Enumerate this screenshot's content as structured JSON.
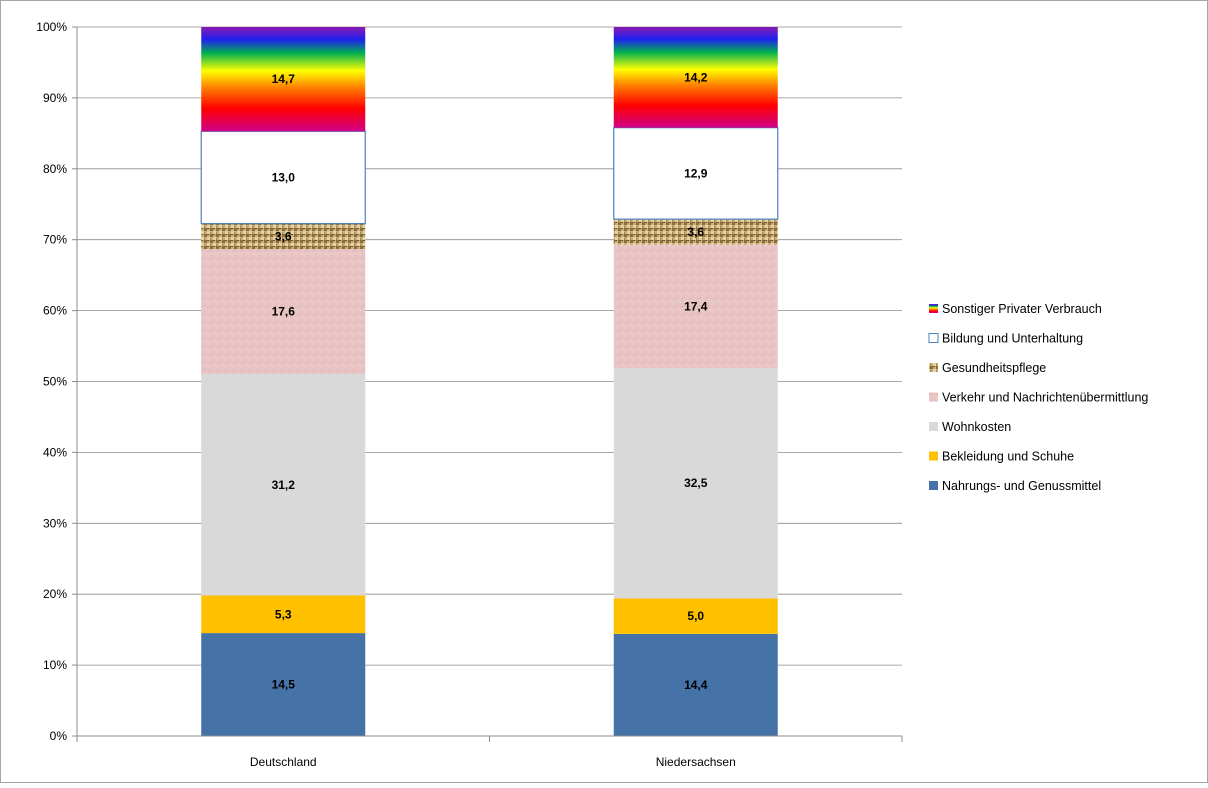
{
  "chart_data": {
    "type": "bar",
    "stacked": "percent",
    "categories": [
      "Deutschland",
      "Niedersachsen"
    ],
    "ylim": [
      0,
      100
    ],
    "yticks": [
      "0%",
      "10%",
      "20%",
      "30%",
      "40%",
      "50%",
      "60%",
      "70%",
      "80%",
      "90%",
      "100%"
    ],
    "grid": true,
    "legend_position": "right",
    "series": [
      {
        "name": "Nahrungs- und Genussmittel",
        "values": [
          14.5,
          14.4
        ],
        "labels": [
          "14,5",
          "14,4"
        ],
        "fill": "solid",
        "color": "#4572a7"
      },
      {
        "name": "Bekleidung und Schuhe",
        "values": [
          5.3,
          5.0
        ],
        "labels": [
          "5,3",
          "5,0"
        ],
        "fill": "solid",
        "color": "#ffc000"
      },
      {
        "name": "Wohnkosten",
        "values": [
          31.2,
          32.5
        ],
        "labels": [
          "31,2",
          "32,5"
        ],
        "fill": "solid",
        "color": "#d9d9d9"
      },
      {
        "name": "Verkehr und Nachrichtenübermittlung",
        "values": [
          17.6,
          17.4
        ],
        "labels": [
          "17,6",
          "17,4"
        ],
        "fill": "texture",
        "color": "#e8c4c4"
      },
      {
        "name": "Gesundheitspflege",
        "values": [
          3.6,
          3.6
        ],
        "labels": [
          "3,6",
          "3,6"
        ],
        "fill": "burlap",
        "color": "#c8a870"
      },
      {
        "name": "Bildung und Unterhaltung",
        "values": [
          13.0,
          12.9
        ],
        "labels": [
          "13,0",
          "12,9"
        ],
        "fill": "outline",
        "color": "#4f81bd"
      },
      {
        "name": "Sonstiger Privater Verbrauch",
        "values": [
          14.7,
          14.2
        ],
        "labels": [
          "14,7",
          "14,2"
        ],
        "fill": "rainbow",
        "color": "#ff0000"
      }
    ]
  }
}
